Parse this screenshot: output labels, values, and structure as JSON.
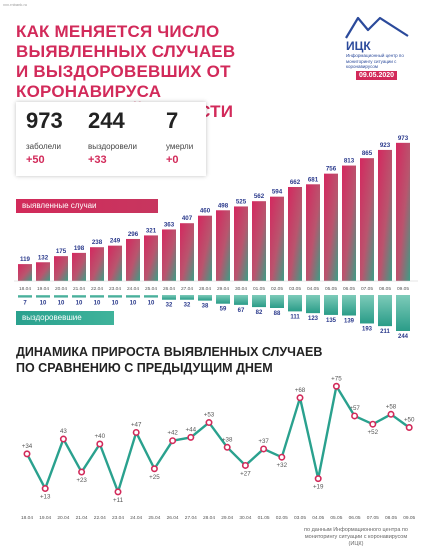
{
  "header": {
    "url": "xxx.rnbank.ru",
    "title_lines": [
      "КАК МЕНЯЕТСЯ ЧИСЛО ВЫЯВЛЕННЫХ СЛУЧАЕВ",
      "И ВЫЗДОРОВЕВШИХ ОТ КОРОНАВИРУСА",
      "В ОРЛОВСКОЙ ОБЛАСТИ"
    ],
    "logo_name": "ИЦК",
    "logo_desc": "Информационный центр по мониторингу ситуации с коронавирусом",
    "date": "09.05.2020"
  },
  "stats": [
    {
      "value": "973",
      "label": "заболели",
      "delta": "+50"
    },
    {
      "value": "244",
      "label": "выздоровели",
      "delta": "+33"
    },
    {
      "value": "7",
      "label": "умерли",
      "delta": "+0"
    }
  ],
  "legend": {
    "cases": "выявленные случаи",
    "recovered": "выздоровевшие"
  },
  "section2": {
    "title_lines": [
      "ДИНАМИКА ПРИРОСТА ВЫЯВЛЕННЫХ СЛУЧАЕВ",
      "ПО СРАВНЕНИЮ С ПРЕДЫДУЩИМ ДНЕМ"
    ]
  },
  "footnote": "по данным Информационного центра по мониторингу ситуации с коронавирусом (ИЦК)",
  "colors": {
    "accent": "#d22a5a",
    "teal": "#2aa18e",
    "brand": "#2b4a9b"
  },
  "chart_data": [
    {
      "type": "bar",
      "categories": [
        "18.04",
        "19.04",
        "20.04",
        "21.04",
        "22.04",
        "23.04",
        "24.04",
        "25.04",
        "26.04",
        "27.04",
        "28.04",
        "29.04",
        "30.04",
        "01.05",
        "02.05",
        "03.05",
        "04.05",
        "05.05",
        "06.05",
        "07.05",
        "08.05",
        "09.05"
      ],
      "series": [
        {
          "name": "выявленные случаи",
          "values": [
            119,
            132,
            175,
            198,
            238,
            249,
            296,
            321,
            363,
            407,
            460,
            498,
            525,
            562,
            594,
            662,
            681,
            756,
            813,
            865,
            923,
            973
          ]
        },
        {
          "name": "выздоровевшие",
          "values": [
            7,
            10,
            10,
            10,
            10,
            10,
            10,
            10,
            32,
            32,
            38,
            59,
            67,
            82,
            88,
            111,
            123,
            135,
            139,
            193,
            211,
            244
          ]
        }
      ],
      "ylim": [
        0,
        1000
      ]
    },
    {
      "type": "line",
      "categories": [
        "18.04",
        "19.04",
        "20.04",
        "21.04",
        "22.04",
        "23.04",
        "24.04",
        "25.04",
        "26.04",
        "27.04",
        "28.04",
        "29.04",
        "30.04",
        "01.05",
        "02.05",
        "03.05",
        "04.05",
        "05.05",
        "06.05",
        "07.05",
        "08.05",
        "09.05"
      ],
      "values": [
        34,
        13,
        43,
        23,
        40,
        11,
        47,
        25,
        42,
        44,
        53,
        38,
        27,
        37,
        32,
        68,
        19,
        75,
        57,
        52,
        58,
        50
      ],
      "labels": [
        "+34",
        "+13",
        "43",
        "+23",
        "+40",
        "+11",
        "+47",
        "+25",
        "+42",
        "+44",
        "+53",
        "+38",
        "+27",
        "+37",
        "+32",
        "+68",
        "+19",
        "+75",
        "+57",
        "+52",
        "+58",
        "+50"
      ],
      "ylim": [
        0,
        80
      ]
    }
  ]
}
